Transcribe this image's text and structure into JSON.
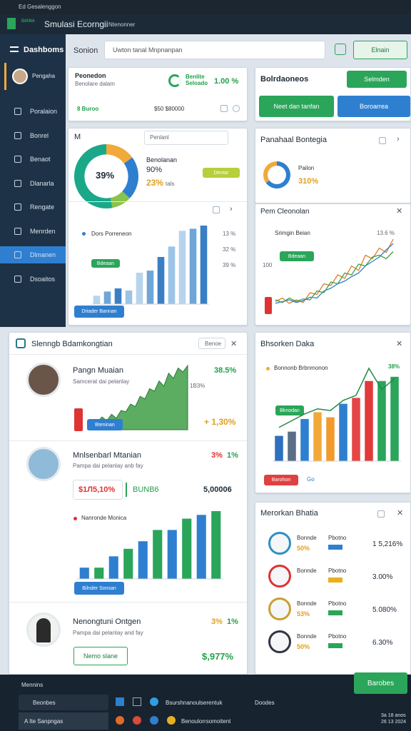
{
  "titlebar": {
    "title": "Ed Gesalenggon"
  },
  "header": {
    "logo": "DIANA",
    "title": "Smulasi Ecorngii",
    "subtitle": "Ntenonner"
  },
  "sidebar": {
    "title": "Dashboms",
    "user": "Pengaha",
    "items": [
      "Poralaion",
      "Bonrel",
      "Benaot",
      "Dlanarla",
      "Rengate",
      "Menrden",
      "Dlmanen",
      "Dsoaitos"
    ]
  },
  "toolbar": {
    "label": "Sonion",
    "search": "Uwton tanal Mnpnanpan",
    "button": "Elnain"
  },
  "summary": {
    "title": "Peonedon",
    "subtitle": "Benolare dalam",
    "metric_label": "Benlite Seloado",
    "metric_value": "1.00 %",
    "left": "8 Buroo",
    "mid": "$50 $80000"
  },
  "actions": {
    "title": "Bolrdaoneos",
    "top_button": "Selmden",
    "button_1": "Neet dan tanfan",
    "button_2": "Boroarrea"
  },
  "donut_card": {
    "letter": "M",
    "dropdown": "Penlanl",
    "center": "39%",
    "title": "Benolanan",
    "value_1": "90%",
    "value_2": "23%",
    "unit": "tals",
    "button": "Dentar",
    "chart": {
      "type": "donut",
      "values": [
        15,
        22,
        10,
        53
      ],
      "colors": [
        "#f2a93b",
        "#2f7fd0",
        "#8bc34a",
        "#1aa889"
      ]
    }
  },
  "bonteja": {
    "title": "Panahaal Bontegia",
    "label": "Pailon",
    "value": "310%",
    "chart": {
      "type": "donut",
      "values": [
        65,
        35
      ],
      "colors": [
        "#2f7fd0",
        "#f2a93b"
      ]
    }
  },
  "bars_card": {
    "legend": "Dors Porreneon",
    "badge": "Bdeaan",
    "side_labels": [
      "13 %",
      "32 %",
      "39 %"
    ],
    "button": "Driader Bannan",
    "chart": {
      "type": "bars",
      "values": [
        8,
        12,
        15,
        13,
        30,
        32,
        45,
        55,
        70,
        72,
        75
      ],
      "colors": [
        "#b8d4ec",
        "#6fa6d8",
        "#3a7fc4",
        "#9cc4e6"
      ]
    }
  },
  "line_card": {
    "title": "Pem Cleonolan",
    "legend": "Srimgin Beian",
    "badge": "Bdeaan",
    "y_label": "100",
    "side_label": "13.6 %",
    "chart": {
      "type": "line",
      "series": [
        {
          "color": "#e07b2a",
          "values": [
            10,
            14,
            8,
            12,
            9,
            20,
            18,
            30,
            28,
            40,
            36,
            50,
            45,
            62,
            58,
            70,
            65,
            80
          ]
        },
        {
          "color": "#2f7fd0",
          "values": [
            8,
            10,
            12,
            9,
            11,
            15,
            14,
            22,
            25,
            30,
            33,
            38,
            42,
            50,
            55,
            60,
            68,
            75
          ]
        },
        {
          "color": "#43a047",
          "values": [
            12,
            9,
            14,
            10,
            13,
            12,
            22,
            20,
            32,
            30,
            42,
            40,
            52,
            50,
            60,
            62,
            58,
            66
          ]
        }
      ]
    }
  },
  "people": {
    "title": "Slenngb Bdamkongtian",
    "tab": "Benoe",
    "p1": {
      "name": "Pangn Muaian",
      "desc": "Samcerat dai pelanlay",
      "pct": "38.5%",
      "tag": "1B3%",
      "badge": "Bteninan",
      "value": "+ 1,30%",
      "chart": {
        "type": "area",
        "color": "#3f9d46",
        "values": [
          5,
          8,
          6,
          10,
          7,
          12,
          9,
          15,
          14,
          20,
          18,
          26,
          24,
          32,
          30,
          38,
          34,
          44,
          40,
          48,
          45,
          50
        ]
      }
    },
    "p2": {
      "name": "Mnlsenbarl Mtanian",
      "pct_1": "3%",
      "pct_2": "1%",
      "desc": "Pampa dai pelanlay anb fay",
      "box_1": "$1Л5,10%",
      "box_2": "BUNB6",
      "box_3": "5,00006",
      "legend": "Nanronde Monica",
      "button": "Bilnder Sonsan",
      "chart": {
        "type": "bars",
        "values": [
          15,
          15,
          30,
          40,
          50,
          65,
          65,
          80,
          85,
          90
        ],
        "colors": [
          "#2f7fd0",
          "#2aa55a"
        ]
      }
    },
    "p3": {
      "name": "Nenongtuni Ontgen",
      "pct_1": "3%",
      "pct_2": "1%",
      "desc": "Pampa dai pelanlay and fay",
      "button": "Nemo slane",
      "value": "$,977%"
    }
  },
  "bars2": {
    "title": "Bhsorken Daka",
    "legend": "Bonnonb Brbnmonon",
    "pct": "38%",
    "badge": "Bknodan",
    "button": "Barohon",
    "link": "Go",
    "chart": {
      "type": "bars",
      "values": [
        30,
        35,
        50,
        58,
        52,
        68,
        75,
        95,
        95,
        100
      ],
      "colors": [
        "#2f6fc0",
        "#5a6f85",
        "#2f7fd0",
        "#f2a93b",
        "#f29a2b",
        "#2f7fd0",
        "#e54545",
        "#e03a3a",
        "#2aa55a",
        "#2aa55a"
      ],
      "line": [
        40,
        48,
        56,
        62,
        60,
        72,
        78,
        110,
        85,
        98
      ]
    }
  },
  "list": {
    "title": "Merorkan Bhatia",
    "rows": [
      {
        "name": "Bonnde",
        "pct": "50%",
        "badge": "Pbotno",
        "value": "1 5,216%"
      },
      {
        "name": "Bonnde",
        "pct": "",
        "badge": "Pbotno",
        "value": "3.00%"
      },
      {
        "name": "Bonnde",
        "pct": "53%",
        "badge": "Pbotno",
        "value": "5.080%"
      },
      {
        "name": "Bonnde",
        "pct": "50%",
        "badge": "Pbotno",
        "value": "6.30%"
      }
    ]
  },
  "taskbar": {
    "app": "Mennins",
    "cta": "Barobes",
    "search": "Beonbes",
    "window": "Bsurshnanoulserentuk",
    "window_2": "Doodes",
    "bottom_left": "A  Ite Sanpngas",
    "bottom_mid": "Benoulorrsomoitent",
    "clock": "3a 18 anos 26 13 2024"
  }
}
